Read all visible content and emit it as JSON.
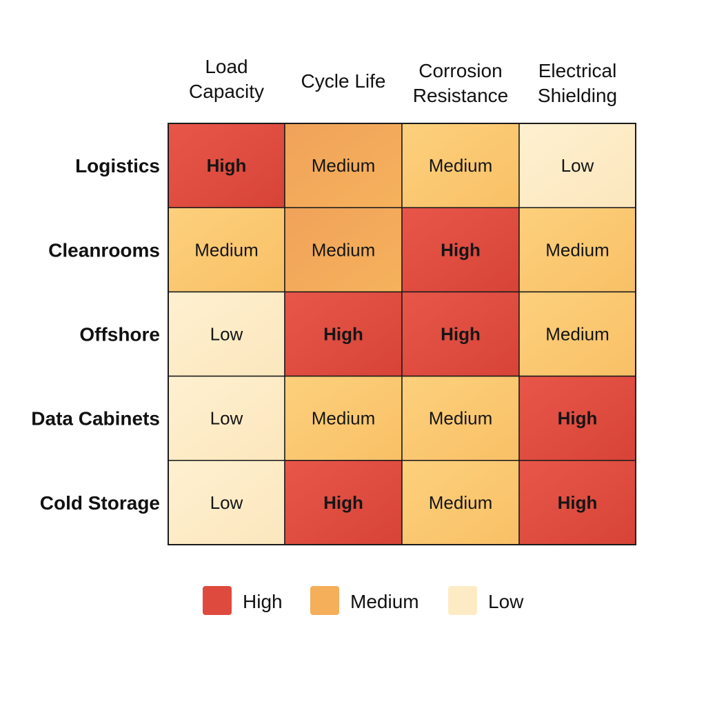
{
  "chart_data": {
    "type": "heatmap",
    "columns": [
      [
        "Load",
        "Capacity"
      ],
      [
        "Cycle Life"
      ],
      [
        "Corrosion",
        "Resistance"
      ],
      [
        "Electrical",
        "Shielding"
      ]
    ],
    "rows": [
      "Logistics",
      "Cleanrooms",
      "Offshore",
      "Data Cabinets",
      "Cold Storage"
    ],
    "values": [
      [
        "High",
        "Medium",
        "Medium",
        "Low"
      ],
      [
        "Medium",
        "Medium",
        "High",
        "Medium"
      ],
      [
        "Low",
        "High",
        "High",
        "Medium"
      ],
      [
        "Low",
        "Medium",
        "Medium",
        "High"
      ],
      [
        "Low",
        "High",
        "Medium",
        "High"
      ]
    ],
    "levels": [
      "High",
      "Medium",
      "Low"
    ],
    "legend": {
      "position": "bottom",
      "items": [
        "High",
        "Medium",
        "Low"
      ]
    },
    "colors": {
      "High": "#de4a3d",
      "Medium": "#fbca72",
      "Medium_alt": "#f4a95a",
      "Low": "#fdebc6",
      "legend_High": "#de4a3d",
      "legend_Medium": "#f5ae5a",
      "legend_Low": "#fdebc6",
      "border": "#1a1a1a"
    },
    "medium_alt_cells": [
      [
        0,
        1
      ],
      [
        1,
        1
      ]
    ]
  }
}
